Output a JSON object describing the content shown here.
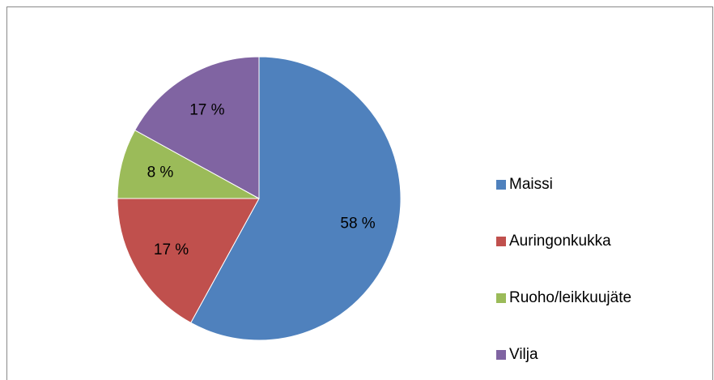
{
  "chart_data": {
    "type": "pie",
    "categories": [
      "Maissi",
      "Auringonkukka",
      "Ruoho/leikkuujäte",
      "Vilja"
    ],
    "values": [
      58,
      17,
      8,
      17
    ],
    "value_labels": [
      "58 %",
      "17 %",
      "8 %",
      "17 %"
    ],
    "colors": [
      "#4f81bd",
      "#c0504d",
      "#9bbb59",
      "#8064a2"
    ],
    "legend": "right"
  }
}
